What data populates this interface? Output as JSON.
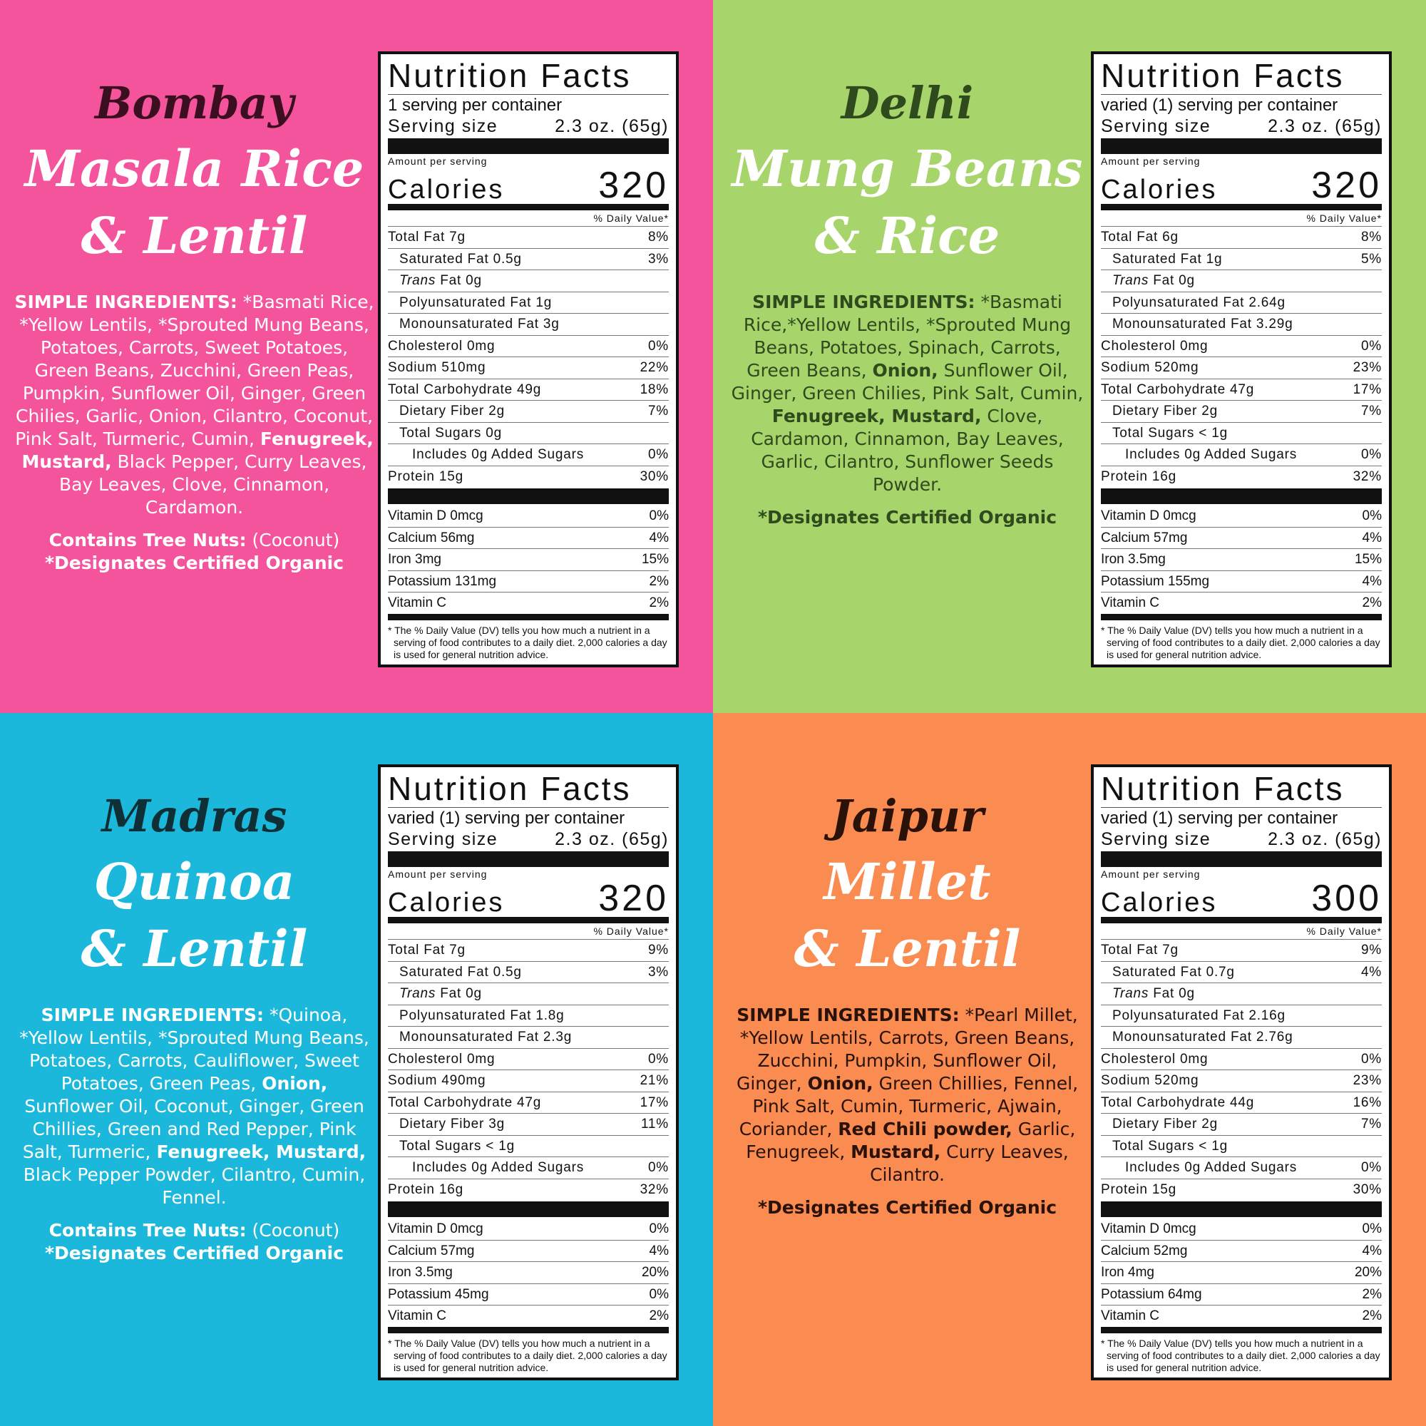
{
  "colors": {
    "bombay": "#f3549c",
    "delhi": "#a8d46c",
    "madras": "#1cb8dc",
    "jaipur": "#fa8c52"
  },
  "panels": [
    {
      "id": "bombay",
      "bg": "#f3549c",
      "title_color": "#3b0f1f",
      "text_color": "#ffffff",
      "title": [
        "Bombay",
        "Masala Rice",
        "& Lentil"
      ],
      "ingredients_label": "SIMPLE INGREDIENTS:",
      "ingredients": [
        {
          "t": " *Basmati Rice, *Yellow Lentils, *Sprouted Mung Beans, Potatoes, Carrots, Sweet Potatoes, Green Beans, Zucchini, Green Peas, Pumpkin, Sunflower Oil, Ginger, Green Chilies, Garlic, Onion, Cilantro, Coconut, Pink Salt, Turmeric, Cumin, "
        },
        {
          "t": "Fenugreek,",
          "b": true
        },
        {
          "t": " "
        },
        {
          "t": "Mustard,",
          "b": true
        },
        {
          "t": " Black Pepper, Curry Leaves, Bay Leaves, Clove, Cinnamon, Cardamon."
        }
      ],
      "allergen_label": "Contains Tree Nuts:",
      "allergen_value": " (Coconut)",
      "organic": "*Designates Certified Organic",
      "label": {
        "servings": "1 serving per container",
        "calories": "320",
        "rows": [
          [
            "Total  Fat  7g",
            "8%",
            0
          ],
          [
            "Saturated Fat 0.5g",
            "3%",
            1
          ],
          [
            "Trans| Fat 0g",
            "",
            1
          ],
          [
            "Polyunsaturated Fat 1g",
            "",
            1
          ],
          [
            "Monounsaturated Fat 3g",
            "",
            1
          ],
          [
            "Cholesterol  0mg",
            "0%",
            0
          ],
          [
            "Sodium  510mg",
            "22%",
            0
          ],
          [
            "Total  Carbohydrate 49g",
            "18%",
            0
          ],
          [
            "Dietary Fiber 2g",
            "7%",
            1
          ],
          [
            "Total Sugars 0g",
            "",
            1
          ],
          [
            "Includes 0g Added Sugars",
            "0%",
            2
          ],
          [
            "Protein  15g",
            "30%",
            0
          ]
        ],
        "vitamins": [
          [
            "Vitamin D 0mcg",
            "0%"
          ],
          [
            "Calcium 56mg",
            "4%"
          ],
          [
            "Iron 3mg",
            "15%"
          ],
          [
            "Potassium 131mg",
            "2%"
          ],
          [
            "Vitamin C",
            "2%"
          ]
        ]
      }
    },
    {
      "id": "delhi",
      "bg": "#a8d46c",
      "title_color": "#2f4a1c",
      "text_color": "#2f4a1c",
      "title": [
        "Delhi",
        "Mung Beans",
        "& Rice"
      ],
      "ingredients_label": "SIMPLE INGREDIENTS:",
      "ingredients": [
        {
          "t": " *Basmati Rice,*Yellow Lentils, *Sprouted Mung Beans, Potatoes, Spinach, Carrots, Green Beans, "
        },
        {
          "t": "Onion,",
          "b": true
        },
        {
          "t": " Sunflower Oil, Ginger, Green Chilies, Pink Salt, Cumin, "
        },
        {
          "t": "Fenugreek, Mustard,",
          "b": true
        },
        {
          "t": " Clove, Cardamon, Cinnamon, Bay Leaves, Garlic, Cilantro, Sunflower Seeds Powder."
        }
      ],
      "organic": "*Designates Certified Organic",
      "label": {
        "servings": "varied (1) serving per container",
        "calories": "320",
        "rows": [
          [
            "Total  Fat  6g",
            "8%",
            0
          ],
          [
            "Saturated Fat 1g",
            "5%",
            1
          ],
          [
            "Trans| Fat 0g",
            "",
            1
          ],
          [
            "Polyunsaturated Fat 2.64g",
            "",
            1
          ],
          [
            "Monounsaturated Fat 3.29g",
            "",
            1
          ],
          [
            "Cholesterol  0mg",
            "0%",
            0
          ],
          [
            "Sodium  520mg",
            "23%",
            0
          ],
          [
            "Total  Carbohydrate 47g",
            "17%",
            0
          ],
          [
            "Dietary Fiber 2g",
            "7%",
            1
          ],
          [
            "Total Sugars < 1g",
            "",
            1
          ],
          [
            "Includes 0g Added Sugars",
            "0%",
            2
          ],
          [
            "Protein  16g",
            "32%",
            0
          ]
        ],
        "vitamins": [
          [
            "Vitamin D 0mcg",
            "0%"
          ],
          [
            "Calcium 57mg",
            "4%"
          ],
          [
            "Iron 3.5mg",
            "15%"
          ],
          [
            "Potassium 155mg",
            "4%"
          ],
          [
            "Vitamin C",
            "2%"
          ]
        ]
      }
    },
    {
      "id": "madras",
      "bg": "#1cb8dc",
      "title_color": "#0f2f36",
      "text_color": "#ffffff",
      "title": [
        "Madras",
        "Quinoa",
        "& Lentil"
      ],
      "ingredients_label": "SIMPLE INGREDIENTS:",
      "ingredients": [
        {
          "t": " *Quinoa, *Yellow Lentils, *Sprouted Mung Beans, Potatoes, Carrots, Cauliflower, Sweet Potatoes, Green Peas, "
        },
        {
          "t": "Onion,",
          "b": true
        },
        {
          "t": " Sunflower Oil, Coconut, Ginger, Green Chillies, Green and Red Pepper, Pink Salt, Turmeric, "
        },
        {
          "t": "Fenugreek, Mustard,",
          "b": true
        },
        {
          "t": " Black Pepper Powder, Cilantro, Cumin, Fennel."
        }
      ],
      "allergen_label": "Contains Tree Nuts:",
      "allergen_value": " (Coconut)",
      "organic": "*Designates Certified Organic",
      "label": {
        "servings": "varied (1) serving per container",
        "calories": "320",
        "rows": [
          [
            "Total  Fat  7g",
            "9%",
            0
          ],
          [
            "Saturated Fat 0.5g",
            "3%",
            1
          ],
          [
            "Trans| Fat 0g",
            "",
            1
          ],
          [
            "Polyunsaturated Fat 1.8g",
            "",
            1
          ],
          [
            "Monounsaturated Fat 2.3g",
            "",
            1
          ],
          [
            "Cholesterol  0mg",
            "0%",
            0
          ],
          [
            "Sodium  490mg",
            "21%",
            0
          ],
          [
            "Total  Carbohydrate 47g",
            "17%",
            0
          ],
          [
            "Dietary Fiber 3g",
            "11%",
            1
          ],
          [
            "Total Sugars < 1g",
            "",
            1
          ],
          [
            "Includes 0g Added Sugars",
            "0%",
            2
          ],
          [
            "Protein  16g",
            "32%",
            0
          ]
        ],
        "vitamins": [
          [
            "Vitamin D 0mcg",
            "0%"
          ],
          [
            "Calcium 57mg",
            "4%"
          ],
          [
            "Iron 3.5mg",
            "20%"
          ],
          [
            "Potassium 45mg",
            "0%"
          ],
          [
            "Vitamin C",
            "2%"
          ]
        ]
      }
    },
    {
      "id": "jaipur",
      "bg": "#fa8c52",
      "title_color": "#2a1208",
      "text_color": "#2a1208",
      "title": [
        "Jaipur",
        "Millet",
        "& Lentil"
      ],
      "ingredients_label": "SIMPLE INGREDIENTS:",
      "ingredients": [
        {
          "t": " *Pearl Millet, *Yellow Lentils, Carrots, Green Beans, Zucchini, Pumpkin, Sunflower Oil, Ginger, "
        },
        {
          "t": "Onion,",
          "b": true
        },
        {
          "t": " Green Chillies, Fennel, Pink Salt, Cumin, Turmeric, Ajwain, Coriander, "
        },
        {
          "t": "Red Chili powder,",
          "b": true
        },
        {
          "t": " Garlic, Fenugreek, "
        },
        {
          "t": "Mustard,",
          "b": true
        },
        {
          "t": " Curry Leaves, Cilantro."
        }
      ],
      "organic": "*Designates Certified Organic",
      "label": {
        "servings": "varied (1) serving per container",
        "calories": "300",
        "rows": [
          [
            "Total  Fat  7g",
            "9%",
            0
          ],
          [
            "Saturated Fat 0.7g",
            "4%",
            1
          ],
          [
            "Trans| Fat 0g",
            "",
            1
          ],
          [
            "Polyunsaturated Fat 2.16g",
            "",
            1
          ],
          [
            "Monounsaturated Fat 2.76g",
            "",
            1
          ],
          [
            "Cholesterol  0mg",
            "0%",
            0
          ],
          [
            "Sodium  520mg",
            "23%",
            0
          ],
          [
            "Total  Carbohydrate 44g",
            "16%",
            0
          ],
          [
            "Dietary Fiber 2g",
            "7%",
            1
          ],
          [
            "Total Sugars < 1g",
            "",
            1
          ],
          [
            "Includes 0g Added Sugars",
            "0%",
            2
          ],
          [
            "Protein  15g",
            "30%",
            0
          ]
        ],
        "vitamins": [
          [
            "Vitamin D 0mcg",
            "0%"
          ],
          [
            "Calcium 52mg",
            "4%"
          ],
          [
            "Iron 4mg",
            "20%"
          ],
          [
            "Potassium 64mg",
            "2%"
          ],
          [
            "Vitamin C",
            "2%"
          ]
        ]
      }
    }
  ],
  "label_common": {
    "title": "Nutrition Facts",
    "serving_size_label": "Serving size",
    "serving_size_value": "2.3 oz. (65g)",
    "amount_per_serving": "Amount per serving",
    "calories_label": "Calories",
    "daily_value_header": "% Daily Value*",
    "footnote": "* The % Daily Value (DV) tells you how much a nutrient in a serving of food contributes to a daily diet. 2,000 calories a day is used for general nutrition advice."
  }
}
